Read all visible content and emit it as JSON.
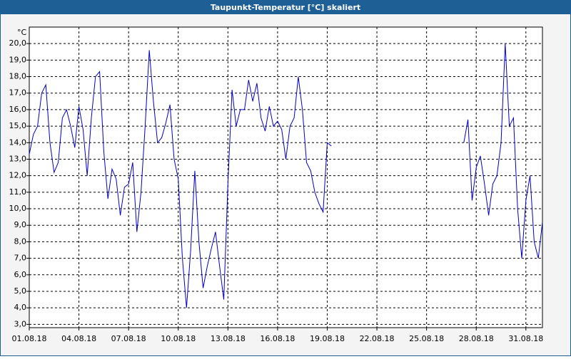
{
  "chart_data": {
    "type": "line",
    "title": "Taupunkt-Temperatur [°C] skaliert",
    "y_unit": "°C",
    "color": "#0000cc",
    "grid": true,
    "xlim": [
      0,
      124
    ],
    "xticks": [
      {
        "value": 0,
        "label": "01.08.18"
      },
      {
        "value": 12,
        "label": "04.08.18"
      },
      {
        "value": 24,
        "label": "07.08.18"
      },
      {
        "value": 36,
        "label": "10.08.18"
      },
      {
        "value": 48,
        "label": "13.08.18"
      },
      {
        "value": 60,
        "label": "16.08.18"
      },
      {
        "value": 72,
        "label": "19.08.18"
      },
      {
        "value": 84,
        "label": "22.08.18"
      },
      {
        "value": 96,
        "label": "25.08.18"
      },
      {
        "value": 108,
        "label": "28.08.18"
      },
      {
        "value": 120,
        "label": "31.08.18"
      }
    ],
    "ylim": [
      2.8,
      21.0
    ],
    "yticks": [
      {
        "value": 3,
        "label": "3,0"
      },
      {
        "value": 4,
        "label": "4,0"
      },
      {
        "value": 5,
        "label": "5,0"
      },
      {
        "value": 6,
        "label": "6,0"
      },
      {
        "value": 7,
        "label": "7,0"
      },
      {
        "value": 8,
        "label": "8,0"
      },
      {
        "value": 9,
        "label": "9,0"
      },
      {
        "value": 10,
        "label": "10,0"
      },
      {
        "value": 11,
        "label": "11,0"
      },
      {
        "value": 12,
        "label": "12,0"
      },
      {
        "value": 13,
        "label": "13,0"
      },
      {
        "value": 14,
        "label": "14,0"
      },
      {
        "value": 15,
        "label": "15,0"
      },
      {
        "value": 16,
        "label": "16,0"
      },
      {
        "value": 17,
        "label": "17,0"
      },
      {
        "value": 18,
        "label": "18,0"
      },
      {
        "value": 19,
        "label": "19,0"
      },
      {
        "value": 20,
        "label": "20,0"
      }
    ],
    "values": [
      13.3,
      14.5,
      15.0,
      17.0,
      17.5,
      14.0,
      12.2,
      12.8,
      15.5,
      16.0,
      15.0,
      13.7,
      16.2,
      14.8,
      12.0,
      15.5,
      18.0,
      18.3,
      13.5,
      10.6,
      12.4,
      11.8,
      9.6,
      11.3,
      11.5,
      12.8,
      8.6,
      11.0,
      15.0,
      19.6,
      16.5,
      14.0,
      14.3,
      15.2,
      16.3,
      13.0,
      11.8,
      7.0,
      4.0,
      7.5,
      12.3,
      8.0,
      5.2,
      6.5,
      7.6,
      8.6,
      6.5,
      4.5,
      11.5,
      17.2,
      15.0,
      16.0,
      16.0,
      17.8,
      16.5,
      17.6,
      15.5,
      14.7,
      16.2,
      15.0,
      15.3,
      14.8,
      13.0,
      15.0,
      15.5,
      18.0,
      16.0,
      12.8,
      12.3,
      11.0,
      10.3,
      9.8,
      14.0,
      13.8,
      null,
      null,
      null,
      null,
      null,
      null,
      null,
      null,
      null,
      null,
      null,
      null,
      null,
      null,
      null,
      null,
      null,
      null,
      null,
      null,
      null,
      null,
      null,
      null,
      null,
      null,
      null,
      null,
      null,
      null,
      null,
      14.0,
      15.4,
      10.5,
      12.5,
      13.2,
      11.5,
      9.6,
      11.5,
      12.0,
      14.0,
      20.0,
      15.0,
      15.5,
      10.0,
      7.0,
      10.5,
      12.0,
      8.0,
      7.0,
      9.2
    ]
  }
}
